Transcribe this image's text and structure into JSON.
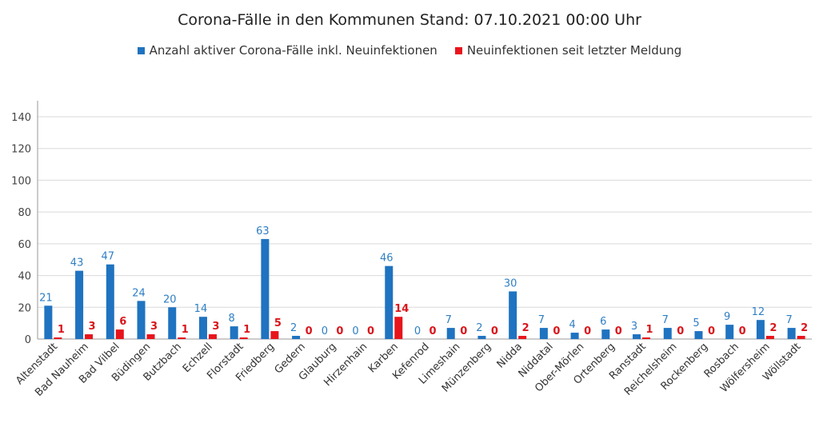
{
  "chart_data": {
    "type": "bar",
    "title": "Corona-Fälle in den Kommunen Stand: 07.10.2021 00:00 Uhr",
    "xlabel": "",
    "ylabel": "",
    "ylim": [
      0,
      140
    ],
    "yticks": [
      0,
      20,
      40,
      60,
      80,
      100,
      120,
      140
    ],
    "grid": true,
    "legend_position": "top",
    "categories": [
      "Altenstadt",
      "Bad Nauheim",
      "Bad Vilbel",
      "Büdingen",
      "Butzbach",
      "Echzell",
      "Florstadt",
      "Friedberg",
      "Gedern",
      "Glauburg",
      "Hirzenhain",
      "Karben",
      "Kefenrod",
      "Limeshain",
      "Münzenberg",
      "Nidda",
      "Niddatal",
      "Ober-Mörlen",
      "Ortenberg",
      "Ranstadt",
      "Reichelsheim",
      "Rockenberg",
      "Rosbach",
      "Wölfersheim",
      "Wöllstadt"
    ],
    "series": [
      {
        "name": "Anzahl aktiver Corona-Fälle inkl. Neuinfektionen",
        "color": "#1f73c0",
        "values": [
          21,
          43,
          47,
          24,
          20,
          14,
          8,
          63,
          2,
          0,
          0,
          46,
          0,
          7,
          2,
          30,
          7,
          4,
          6,
          3,
          7,
          5,
          9,
          12,
          7
        ]
      },
      {
        "name": "Neuinfektionen seit letzter Meldung",
        "color": "#e8141c",
        "values": [
          1,
          3,
          6,
          3,
          1,
          3,
          1,
          5,
          0,
          0,
          0,
          14,
          0,
          0,
          0,
          2,
          0,
          0,
          0,
          1,
          0,
          0,
          0,
          2,
          2
        ]
      }
    ]
  }
}
